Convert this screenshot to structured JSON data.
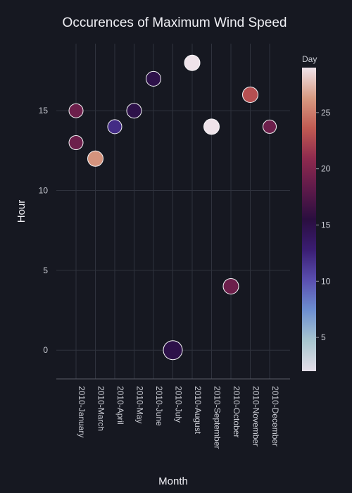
{
  "chart_data": {
    "type": "scatter",
    "title": "Occurences of Maximum Wind Speed",
    "xlabel": "Month",
    "ylabel": "Hour",
    "categories": [
      "2010-January",
      "2010-March",
      "2010-April",
      "2010-May",
      "2010-June",
      "2010-July",
      "2010-August",
      "2010-September",
      "2010-October",
      "2010-November",
      "2010-December"
    ],
    "y_ticks": [
      0,
      5,
      10,
      15
    ],
    "ylim": [
      -1.8,
      19.2
    ],
    "grid": true,
    "points": [
      {
        "x": "2010-January",
        "y": 15,
        "day": 19,
        "size": 1.0
      },
      {
        "x": "2010-January",
        "y": 13,
        "day": 19,
        "size": 1.0
      },
      {
        "x": "2010-March",
        "y": 12,
        "day": 26,
        "size": 1.1
      },
      {
        "x": "2010-April",
        "y": 14,
        "day": 12,
        "size": 1.0
      },
      {
        "x": "2010-May",
        "y": 15,
        "day": 15,
        "size": 1.05
      },
      {
        "x": "2010-June",
        "y": 17,
        "day": 15,
        "size": 1.05
      },
      {
        "x": "2010-July",
        "y": 0,
        "day": 15,
        "size": 1.35
      },
      {
        "x": "2010-August",
        "y": 18,
        "day": 29,
        "size": 1.1
      },
      {
        "x": "2010-September",
        "y": 14,
        "day": 29,
        "size": 1.1
      },
      {
        "x": "2010-October",
        "y": 4,
        "day": 19,
        "size": 1.1
      },
      {
        "x": "2010-November",
        "y": 16,
        "day": 23,
        "size": 1.1
      },
      {
        "x": "2010-December",
        "y": 14,
        "day": 19,
        "size": 0.95
      }
    ],
    "colorbar": {
      "title": "Day",
      "range": [
        2,
        29
      ],
      "ticks": [
        5,
        10,
        15,
        20,
        25
      ],
      "colorscale": [
        "#e3dde8",
        "#a8c6cf",
        "#6d8fd1",
        "#5a4fb0",
        "#3a1d73",
        "#2a0e3f",
        "#5e1a4a",
        "#8e2a4e",
        "#c05a52",
        "#d79a82",
        "#efe3ea"
      ]
    }
  }
}
